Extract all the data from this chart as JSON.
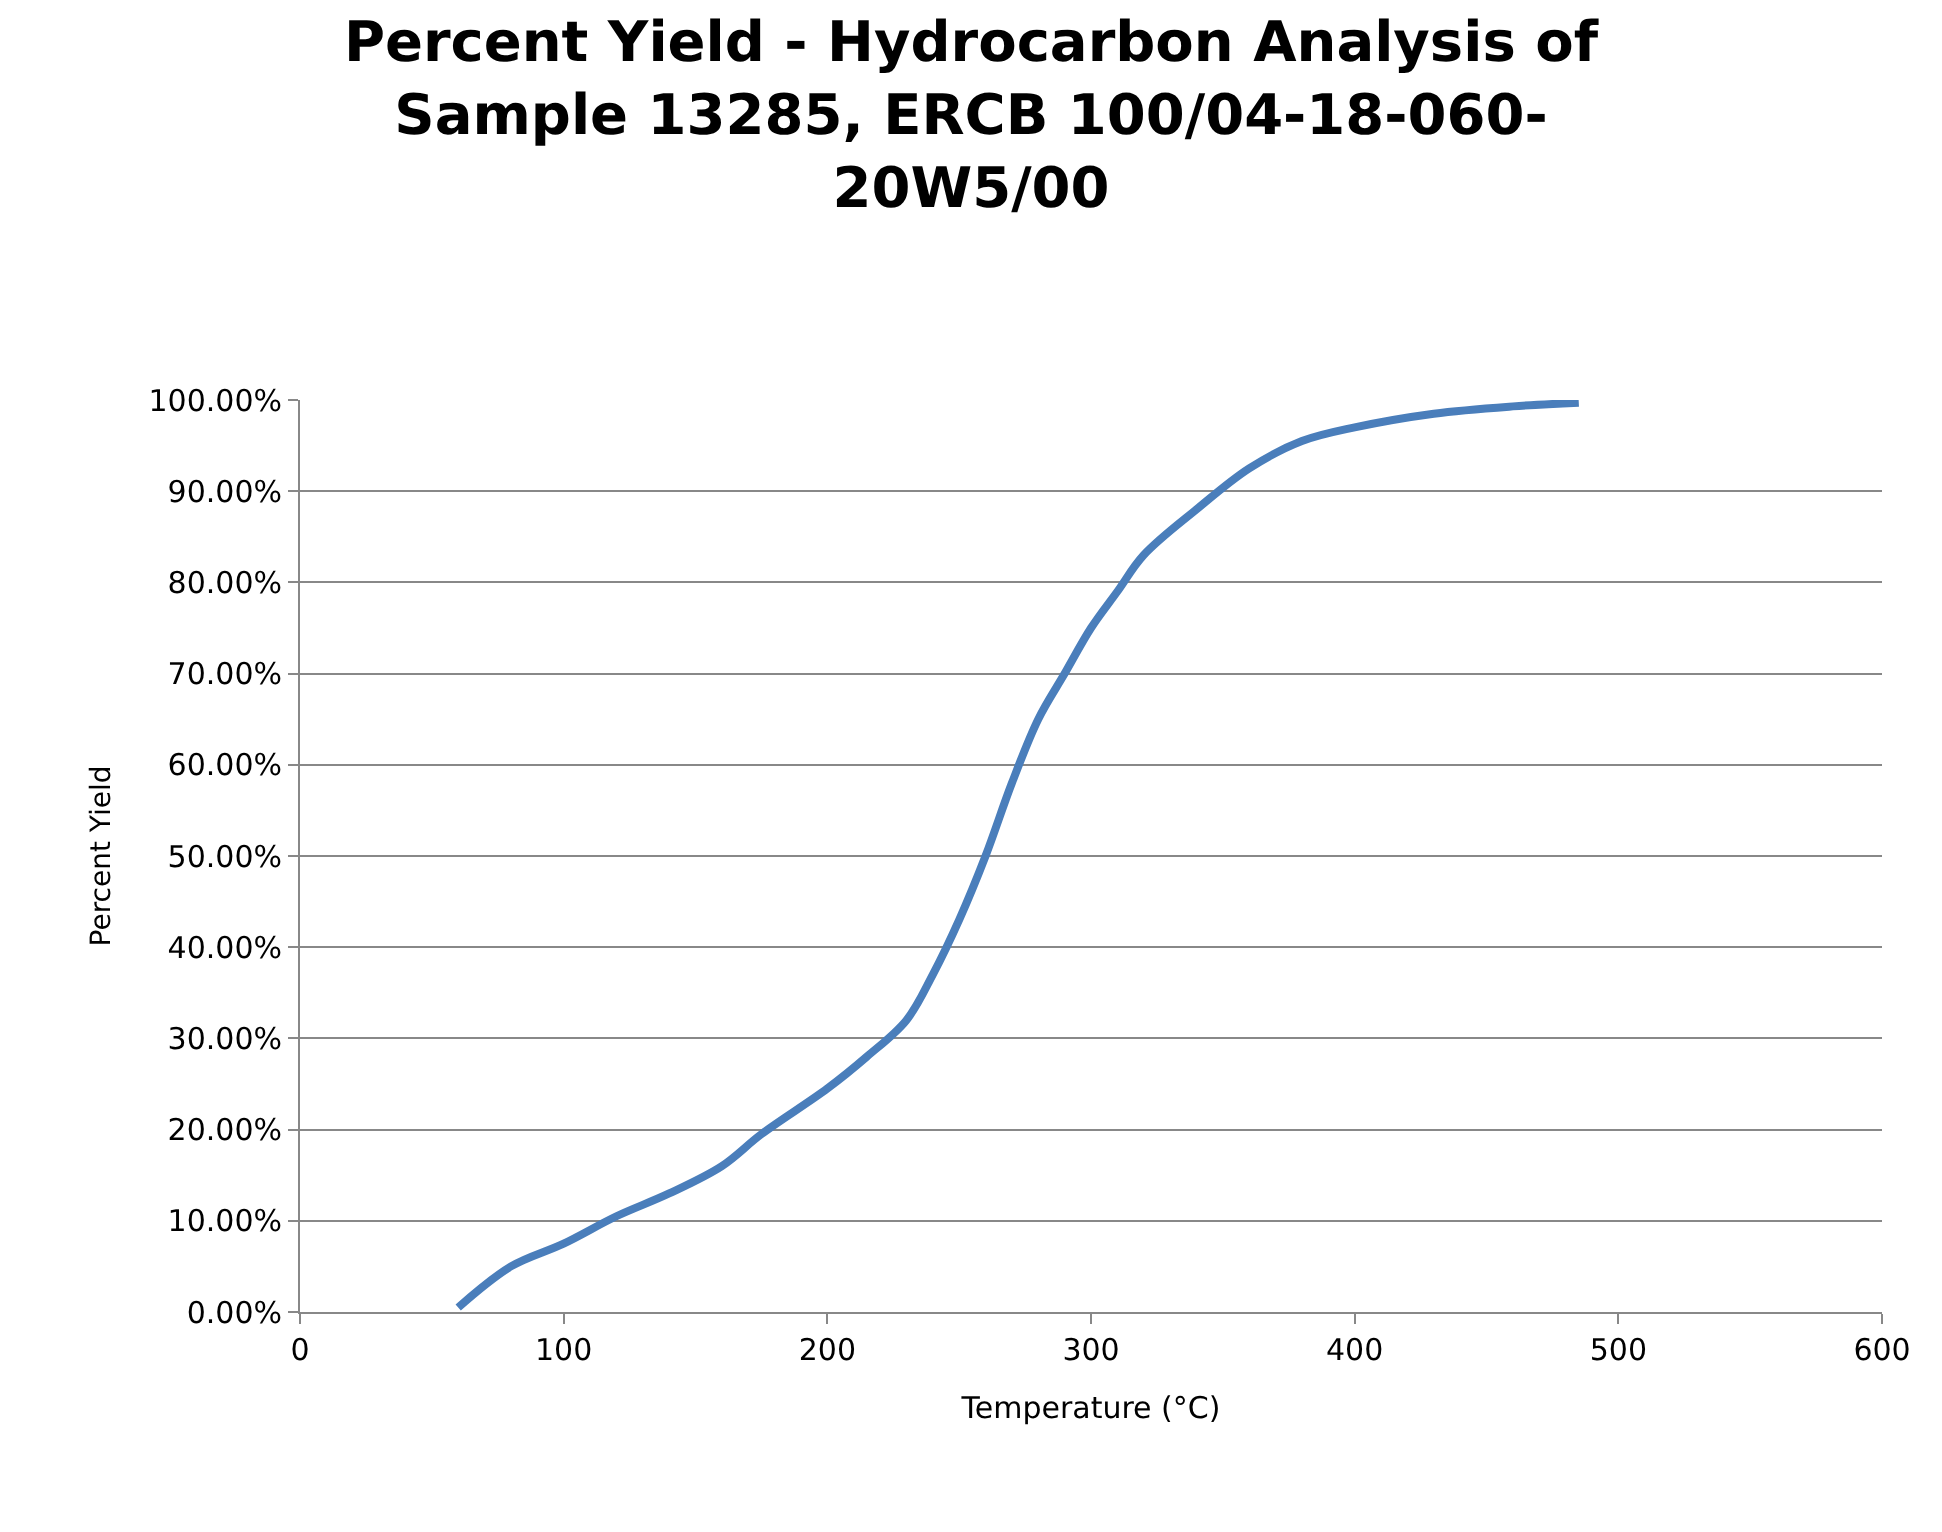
{
  "chart_data": {
    "type": "line",
    "title": "Percent Yield - Hydrocarbon Analysis of\nSample 13285, ERCB 100/04-18-060-\n20W5/00",
    "xlabel": "Temperature (°C)",
    "ylabel": "Percent Yield",
    "x": [
      60,
      80,
      100,
      120,
      140,
      160,
      175,
      200,
      215,
      230,
      240,
      250,
      260,
      270,
      280,
      290,
      300,
      310,
      320,
      340,
      360,
      380,
      400,
      430,
      460,
      485
    ],
    "series": [
      {
        "color": "#4a7ebb",
        "values": [
          0.5,
          5,
          7.5,
          10.5,
          13,
          16,
          19.5,
          24.5,
          28,
          32,
          37,
          43,
          50,
          58,
          65,
          70,
          75,
          79,
          83,
          88,
          92.5,
          95.5,
          97,
          98.5,
          99.3,
          99.7
        ]
      }
    ],
    "xlim": [
      0,
      600
    ],
    "xticks": [
      0,
      100,
      200,
      300,
      400,
      500,
      600
    ],
    "ylim": [
      0,
      100
    ],
    "yticks": [
      {
        "value": 0,
        "label": "0.00%"
      },
      {
        "value": 10,
        "label": "10.00%"
      },
      {
        "value": 20,
        "label": "20.00%"
      },
      {
        "value": 30,
        "label": "30.00%"
      },
      {
        "value": 40,
        "label": "40.00%"
      },
      {
        "value": 50,
        "label": "50.00%"
      },
      {
        "value": 60,
        "label": "60.00%"
      },
      {
        "value": 70,
        "label": "70.00%"
      },
      {
        "value": 80,
        "label": "80.00%"
      },
      {
        "value": 90,
        "label": "90.00%"
      },
      {
        "value": 100,
        "label": "100.00%"
      }
    ],
    "grid": "y",
    "marker": "none",
    "line_style": "solid"
  }
}
